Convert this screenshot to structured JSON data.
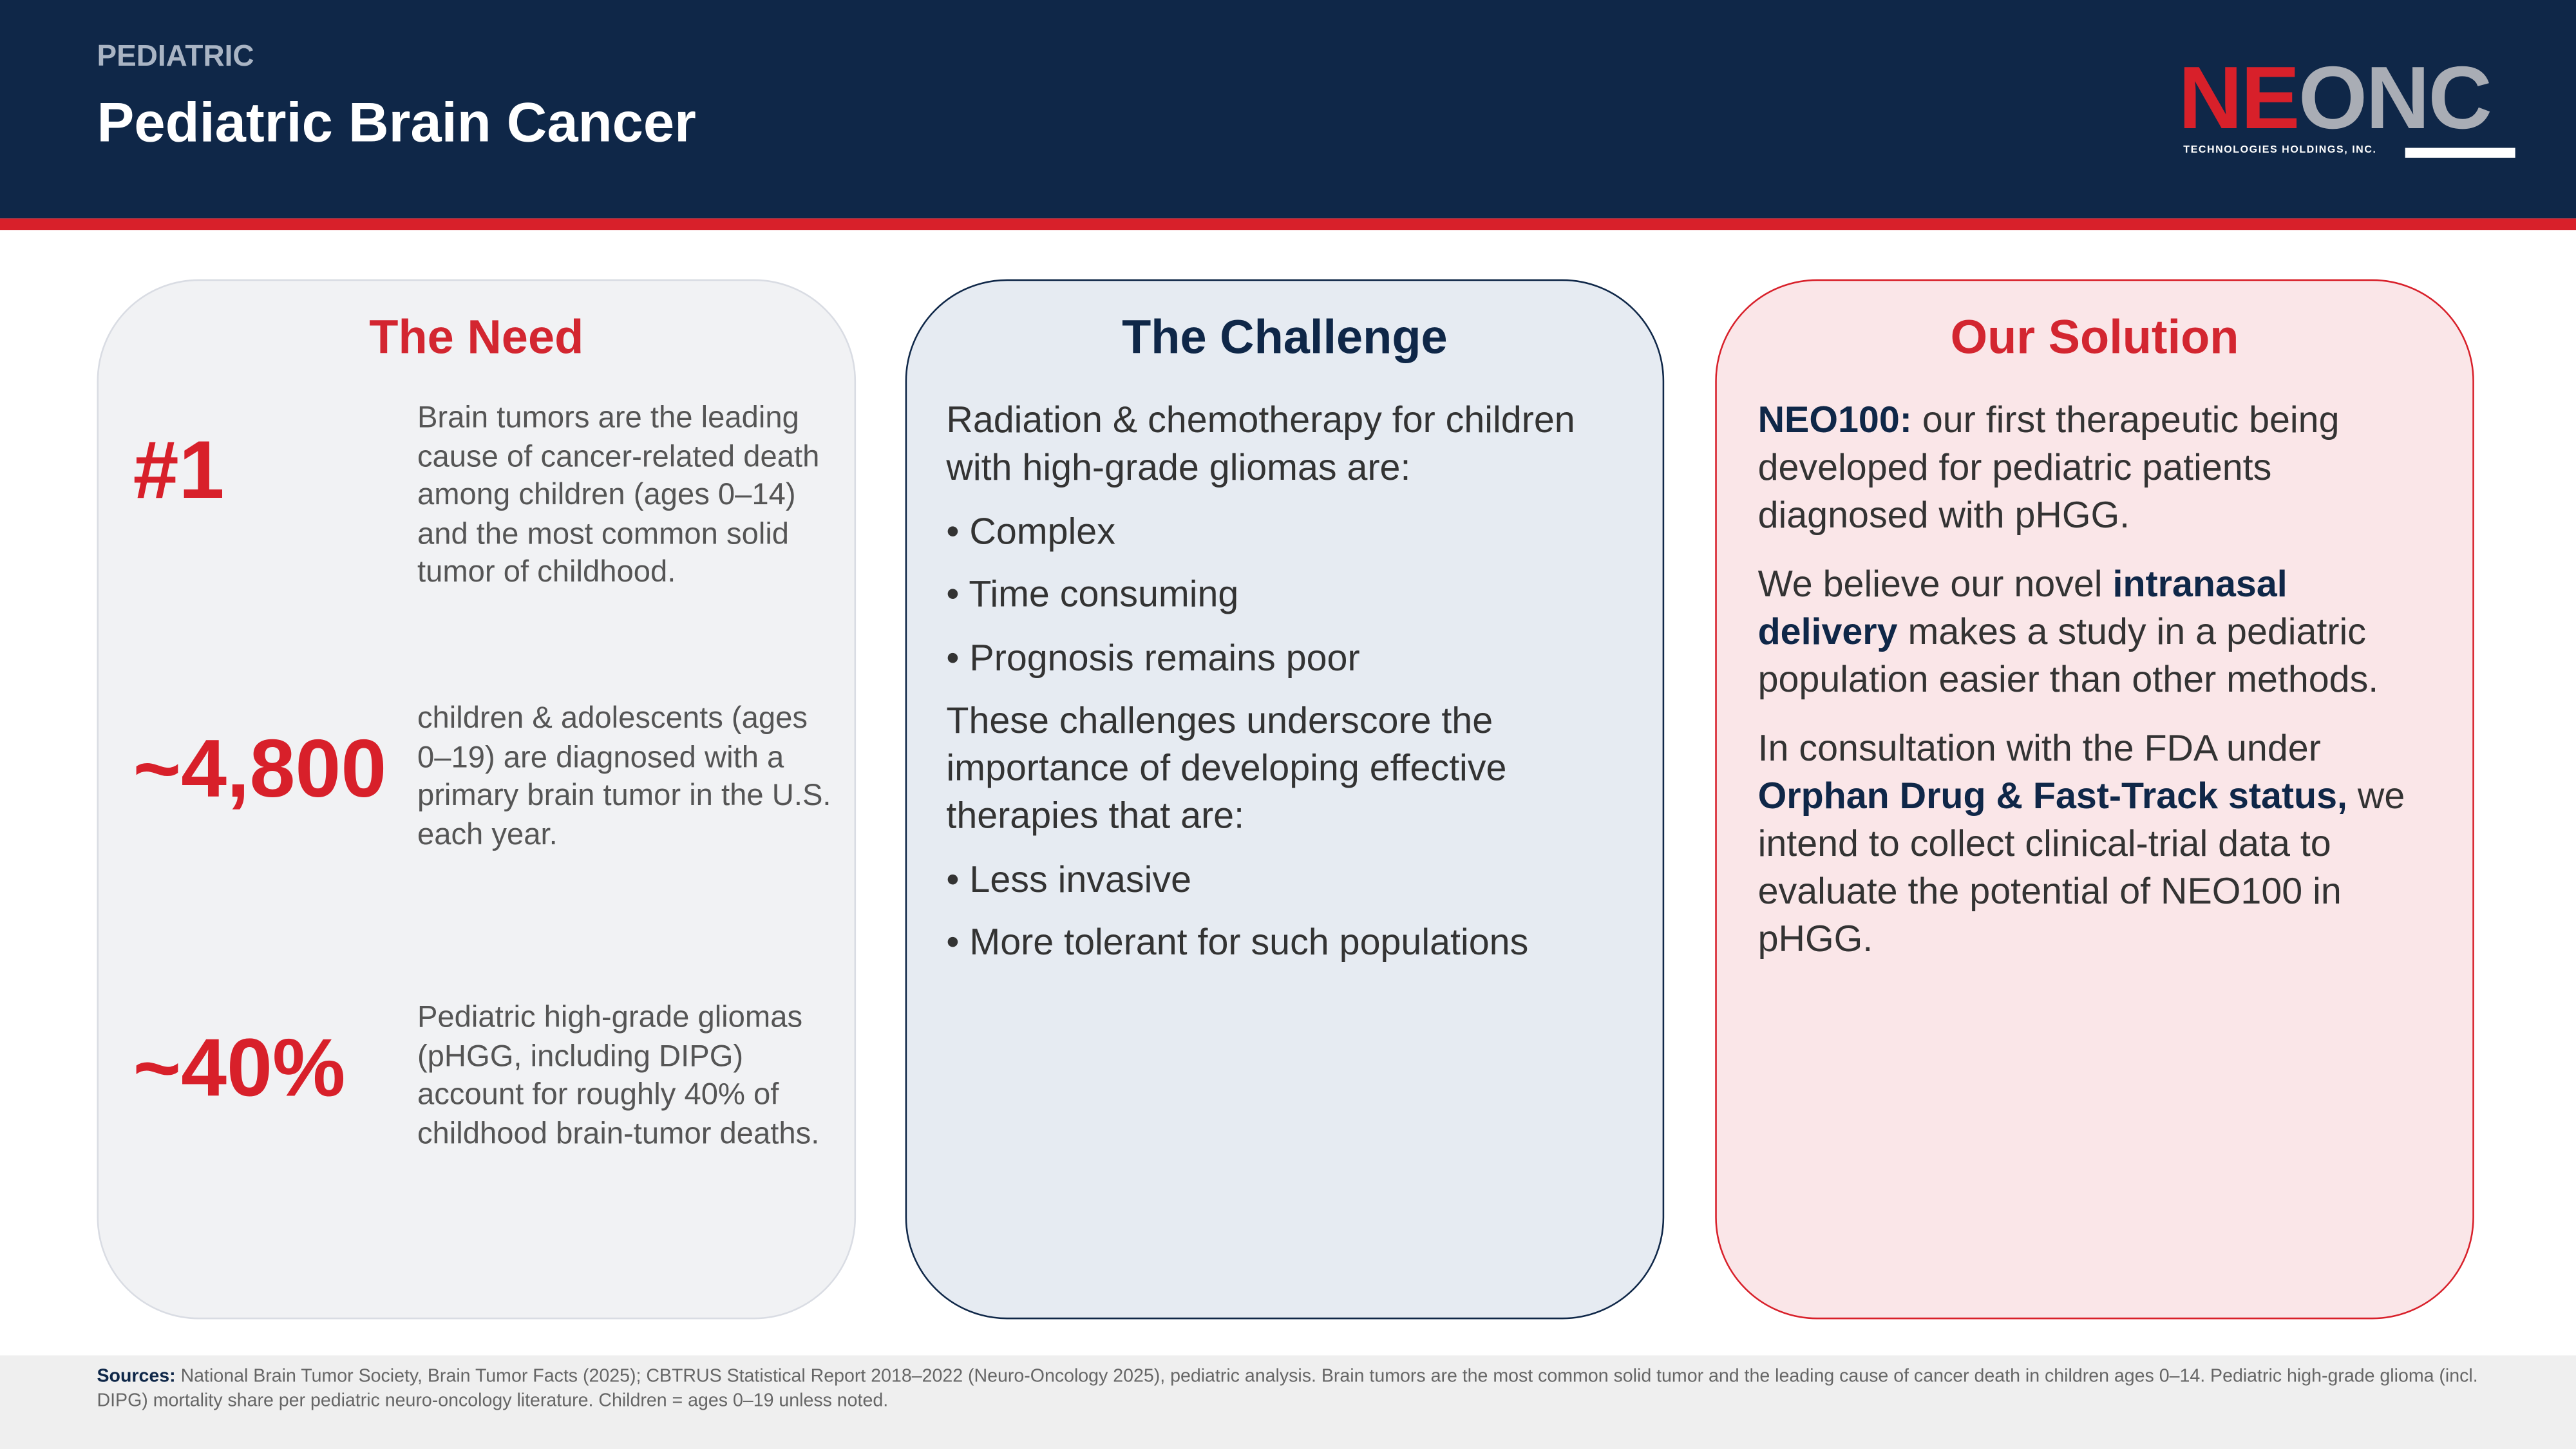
{
  "header": {
    "section": "PEDIATRIC",
    "title": "Pediatric Brain Cancer",
    "logo": {
      "brand_primary": "NE",
      "brand_secondary": "ONC",
      "tagline": "TECHNOLOGIES HOLDINGS, INC."
    }
  },
  "cards": [
    {
      "heading": "The Need",
      "stats": [
        {
          "figure": "#1",
          "text": "Brain tumors are the leading cause of cancer-related death among children (ages 0–14) and the most common solid tumor of childhood."
        },
        {
          "figure": "~4,800",
          "text": "children & adolescents (ages 0–19) are diagnosed with a primary brain tumor in the U.S. each year."
        },
        {
          "figure": "~40%",
          "text": "Pediatric high-grade gliomas (pHGG, including DIPG) account for roughly 40% of childhood brain-tumor deaths."
        }
      ]
    },
    {
      "heading": "The Challenge",
      "intro": "Radiation & chemotherapy for children with high-grade gliomas are:",
      "bullets_1": [
        "• Complex",
        "• Time consuming",
        "• Prognosis remains poor"
      ],
      "middle": "These challenges underscore the importance of developing effective therapies that are:",
      "bullets_2": [
        "• Less invasive",
        "• More tolerant for such populations"
      ]
    },
    {
      "heading": "Our Solution",
      "paragraphs": [
        [
          {
            "text": "NEO100:",
            "bold": true
          },
          {
            "text": " our first therapeutic being developed for pediatric patients diagnosed with pHGG.",
            "bold": false
          }
        ],
        [
          {
            "text": "We believe our novel ",
            "bold": false
          },
          {
            "text": "intranasal delivery",
            "bold": true
          },
          {
            "text": " makes a study in a pediatric population easier than other methods.",
            "bold": false
          }
        ],
        [
          {
            "text": "In consultation with the FDA under ",
            "bold": false
          },
          {
            "text": "Orphan Drug & Fast-Track status,",
            "bold": true
          },
          {
            "text": " we intend to collect clinical-trial data to evaluate the potential of NEO100 in pHGG.",
            "bold": false
          }
        ]
      ]
    }
  ],
  "footer": {
    "label": "Sources:",
    "text": "National Brain Tumor Society, Brain Tumor Facts (2025); CBTRUS Statistical Report 2018–2022 (Neuro-Oncology 2025), pediatric analysis. Brain tumors are the most common solid tumor and the leading cause of cancer death in children ages 0–14. Pediatric high-grade glioma (incl. DIPG) mortality share per pediatric neuro-oncology literature. Children = ages 0–19 unless noted."
  }
}
